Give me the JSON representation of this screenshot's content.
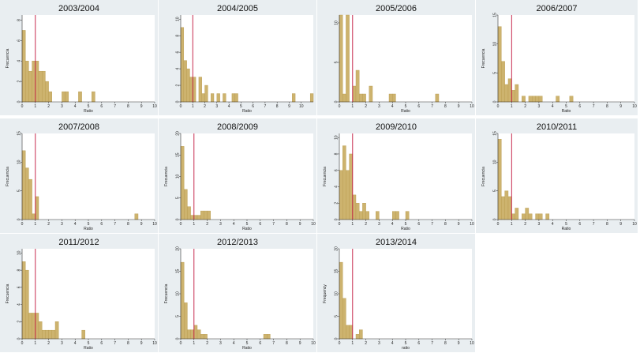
{
  "colors": {
    "bar": "#cdb36e",
    "bar_stroke": "#b89a4d",
    "ref_line": "#c0143c",
    "panel_bg": "#e9eef1",
    "plot_bg": "#ffffff"
  },
  "chart_data": [
    {
      "type": "bar",
      "title": "2003/2004",
      "xlabel": "Ratio",
      "ylabel": "Frecuencia",
      "xlim": [
        0,
        10
      ],
      "xticks": [
        0,
        1,
        2,
        3,
        4,
        5,
        6,
        7,
        8,
        9,
        10
      ],
      "ylim": [
        0,
        8.5
      ],
      "yticks": [
        0,
        2,
        4,
        6,
        8
      ],
      "bin_width": 0.25,
      "ref_line_x": 1,
      "bins": [
        [
          0,
          7
        ],
        [
          0.25,
          4
        ],
        [
          0.5,
          3
        ],
        [
          0.75,
          4
        ],
        [
          1,
          4
        ],
        [
          1.25,
          3
        ],
        [
          1.5,
          3
        ],
        [
          1.75,
          2
        ],
        [
          2,
          1
        ],
        [
          3,
          1
        ],
        [
          3.25,
          1
        ],
        [
          4.25,
          1
        ],
        [
          5.25,
          1
        ]
      ]
    },
    {
      "type": "bar",
      "title": "2004/2005",
      "xlabel": "Ratio",
      "ylabel": "",
      "xlim": [
        0,
        11
      ],
      "xticks": [
        0,
        1,
        2,
        3,
        4,
        5,
        6,
        7,
        8,
        9,
        10
      ],
      "ylim": [
        0,
        10.5
      ],
      "yticks": [
        0,
        2,
        4,
        6,
        8,
        10
      ],
      "bin_width": 0.25,
      "ref_line_x": 1,
      "bins": [
        [
          0,
          9
        ],
        [
          0.25,
          5
        ],
        [
          0.5,
          4
        ],
        [
          0.75,
          3
        ],
        [
          1,
          3
        ],
        [
          1.5,
          3
        ],
        [
          1.75,
          1
        ],
        [
          2,
          2
        ],
        [
          2.5,
          1
        ],
        [
          3,
          1
        ],
        [
          3.5,
          1
        ],
        [
          4.25,
          1
        ],
        [
          4.5,
          1
        ],
        [
          9.25,
          1
        ],
        [
          10.75,
          1
        ]
      ]
    },
    {
      "type": "bar",
      "title": "2005/2006",
      "xlabel": "Ratio",
      "ylabel": "",
      "xlim": [
        0,
        10
      ],
      "xticks": [
        0,
        1,
        2,
        3,
        4,
        5,
        6,
        7,
        8,
        9,
        10
      ],
      "ylim": [
        0,
        11
      ],
      "yticks": [
        0,
        5,
        10
      ],
      "bin_width": 0.25,
      "ref_line_x": 1,
      "bins": [
        [
          0,
          11
        ],
        [
          0.25,
          1
        ],
        [
          0.5,
          11
        ],
        [
          1,
          2
        ],
        [
          1.25,
          4
        ],
        [
          1.5,
          1
        ],
        [
          1.75,
          1
        ],
        [
          2.25,
          2
        ],
        [
          3.75,
          1
        ],
        [
          4,
          1
        ],
        [
          7.25,
          1
        ]
      ]
    },
    {
      "type": "bar",
      "title": "2006/2007",
      "xlabel": "Ratio",
      "ylabel": "Frecuencia",
      "xlim": [
        0,
        10
      ],
      "xticks": [
        0,
        1,
        2,
        3,
        4,
        5,
        6,
        7,
        8,
        9,
        10
      ],
      "ylim": [
        0,
        15
      ],
      "yticks": [
        0,
        5,
        10,
        15
      ],
      "bin_width": 0.25,
      "ref_line_x": 1,
      "bins": [
        [
          0,
          13
        ],
        [
          0.25,
          7
        ],
        [
          0.5,
          3
        ],
        [
          0.75,
          4
        ],
        [
          1,
          2
        ],
        [
          1.25,
          3
        ],
        [
          1.75,
          1
        ],
        [
          2.25,
          1
        ],
        [
          2.5,
          1
        ],
        [
          2.75,
          1
        ],
        [
          3,
          1
        ],
        [
          4.25,
          1
        ],
        [
          5.25,
          1
        ]
      ]
    },
    {
      "type": "bar",
      "title": "2007/2008",
      "xlabel": "Ratio",
      "ylabel": "Frecuencia",
      "xlim": [
        0,
        10
      ],
      "xticks": [
        0,
        1,
        2,
        3,
        4,
        5,
        6,
        7,
        8,
        9,
        10
      ],
      "ylim": [
        0,
        15
      ],
      "yticks": [
        0,
        5,
        10,
        15
      ],
      "bin_width": 0.25,
      "ref_line_x": 1,
      "bins": [
        [
          0,
          12
        ],
        [
          0.25,
          9
        ],
        [
          0.5,
          7
        ],
        [
          0.75,
          1
        ],
        [
          1,
          4
        ],
        [
          8.5,
          1
        ]
      ]
    },
    {
      "type": "bar",
      "title": "2008/2009",
      "xlabel": "Ratio",
      "ylabel": "Frecuencia",
      "xlim": [
        0,
        10
      ],
      "xticks": [
        0,
        1,
        2,
        3,
        4,
        5,
        6,
        7,
        8,
        9,
        10
      ],
      "ylim": [
        0,
        20
      ],
      "yticks": [
        0,
        5,
        10,
        15,
        20
      ],
      "bin_width": 0.25,
      "ref_line_x": 1,
      "bins": [
        [
          0,
          17
        ],
        [
          0.25,
          7
        ],
        [
          0.5,
          3
        ],
        [
          0.75,
          1
        ],
        [
          1,
          1
        ],
        [
          1.25,
          1
        ],
        [
          1.5,
          2
        ],
        [
          1.75,
          2
        ],
        [
          2,
          2
        ]
      ]
    },
    {
      "type": "bar",
      "title": "2009/2010",
      "xlabel": "Ratio",
      "ylabel": "Frecuencia",
      "xlim": [
        0,
        10
      ],
      "xticks": [
        0,
        1,
        2,
        3,
        4,
        5,
        6,
        7,
        8,
        9,
        10
      ],
      "ylim": [
        0,
        10.5
      ],
      "yticks": [
        0,
        2,
        4,
        6,
        8,
        10
      ],
      "bin_width": 0.25,
      "ref_line_x": 1,
      "bins": [
        [
          0,
          6
        ],
        [
          0.25,
          9
        ],
        [
          0.5,
          6
        ],
        [
          0.75,
          8
        ],
        [
          1,
          3
        ],
        [
          1.25,
          2
        ],
        [
          1.5,
          1
        ],
        [
          1.75,
          2
        ],
        [
          2,
          1
        ],
        [
          2.75,
          1
        ],
        [
          4,
          1
        ],
        [
          4.25,
          1
        ],
        [
          5,
          1
        ]
      ]
    },
    {
      "type": "bar",
      "title": "2010/2011",
      "xlabel": "Ratio",
      "ylabel": "Frecuencia",
      "xlim": [
        0,
        10
      ],
      "xticks": [
        0,
        1,
        2,
        3,
        4,
        5,
        6,
        7,
        8,
        9,
        10
      ],
      "ylim": [
        0,
        15
      ],
      "yticks": [
        0,
        5,
        10,
        15
      ],
      "bin_width": 0.25,
      "ref_line_x": 1,
      "bins": [
        [
          0,
          14
        ],
        [
          0.25,
          4
        ],
        [
          0.5,
          5
        ],
        [
          0.75,
          4
        ],
        [
          1,
          1
        ],
        [
          1.25,
          2
        ],
        [
          1.75,
          1
        ],
        [
          2,
          2
        ],
        [
          2.25,
          1
        ],
        [
          2.75,
          1
        ],
        [
          3,
          1
        ],
        [
          3.5,
          1
        ]
      ]
    },
    {
      "type": "bar",
      "title": "2011/2012",
      "xlabel": "Ratio",
      "ylabel": "Frecuencia",
      "xlim": [
        0,
        10
      ],
      "xticks": [
        0,
        1,
        2,
        3,
        4,
        5,
        6,
        7,
        8,
        9,
        10
      ],
      "ylim": [
        0,
        10.5
      ],
      "yticks": [
        0,
        2,
        4,
        6,
        8,
        10
      ],
      "bin_width": 0.25,
      "ref_line_x": 1,
      "bins": [
        [
          0,
          9
        ],
        [
          0.25,
          8
        ],
        [
          0.5,
          3
        ],
        [
          0.75,
          3
        ],
        [
          1,
          3
        ],
        [
          1.25,
          2
        ],
        [
          1.5,
          1
        ],
        [
          1.75,
          1
        ],
        [
          2,
          1
        ],
        [
          2.25,
          1
        ],
        [
          2.5,
          2
        ],
        [
          4.5,
          1
        ]
      ]
    },
    {
      "type": "bar",
      "title": "2012/2013",
      "xlabel": "Ratio",
      "ylabel": "Frecuencia",
      "xlim": [
        0,
        10
      ],
      "xticks": [
        0,
        1,
        2,
        3,
        4,
        5,
        6,
        7,
        8,
        9,
        10
      ],
      "ylim": [
        0,
        20
      ],
      "yticks": [
        0,
        5,
        10,
        15,
        20
      ],
      "bin_width": 0.25,
      "ref_line_x": 1,
      "bins": [
        [
          0,
          17
        ],
        [
          0.25,
          8
        ],
        [
          0.5,
          2
        ],
        [
          0.75,
          2
        ],
        [
          1,
          3
        ],
        [
          1.25,
          2
        ],
        [
          1.5,
          1
        ],
        [
          1.75,
          1
        ],
        [
          6.25,
          1
        ],
        [
          6.5,
          1
        ]
      ]
    },
    {
      "type": "bar",
      "title": "2013/2014",
      "xlabel": "ratio",
      "ylabel": "Frequency",
      "xlim": [
        0,
        10
      ],
      "xticks": [
        0,
        1,
        2,
        3,
        4,
        5,
        6,
        7,
        8,
        9,
        10
      ],
      "ylim": [
        0,
        20
      ],
      "yticks": [
        0,
        5,
        10,
        15,
        20
      ],
      "bin_width": 0.25,
      "ref_line_x": 1,
      "bins": [
        [
          0,
          17
        ],
        [
          0.25,
          9
        ],
        [
          0.5,
          3
        ],
        [
          0.75,
          3
        ],
        [
          1.25,
          1
        ],
        [
          1.5,
          2
        ]
      ]
    }
  ]
}
